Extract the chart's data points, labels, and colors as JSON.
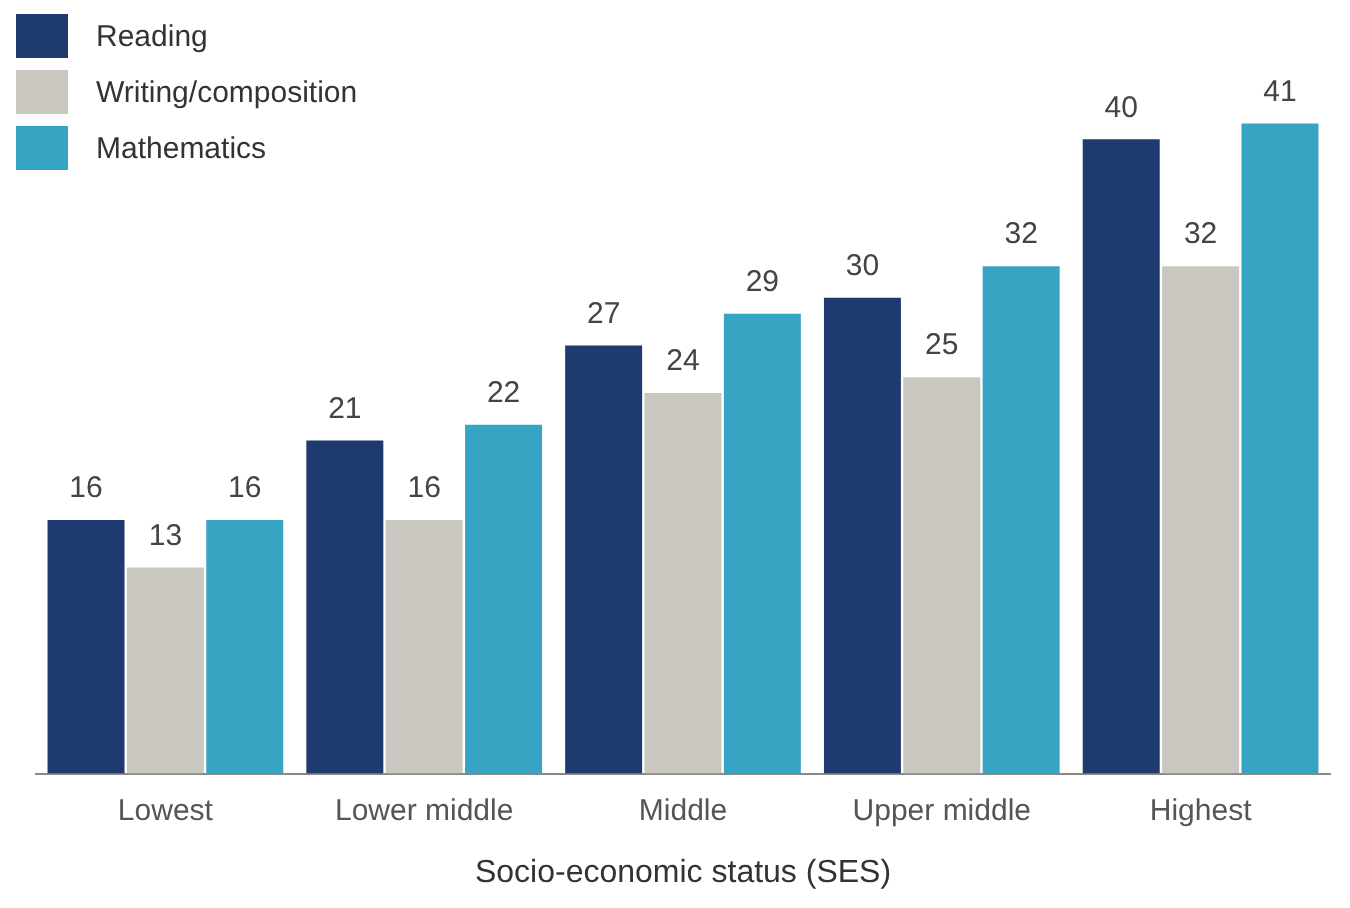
{
  "chart_data": {
    "type": "bar",
    "xlabel": "Socio-economic status (SES)",
    "categories": [
      "Lowest",
      "Lower middle",
      "Middle",
      "Upper middle",
      "Highest"
    ],
    "series": [
      {
        "name": "Reading",
        "color": "#1e3a6e",
        "values": [
          16,
          21,
          27,
          30,
          40
        ]
      },
      {
        "name": "Writing/composition",
        "color": "#c9c7c0",
        "values": [
          13,
          16,
          24,
          25,
          32
        ]
      },
      {
        "name": "Mathematics",
        "color": "#38a4c4",
        "values": [
          16,
          22,
          29,
          32,
          41
        ]
      }
    ],
    "relative": false,
    "data_labels": true,
    "legend": "top left",
    "grid": false
  }
}
